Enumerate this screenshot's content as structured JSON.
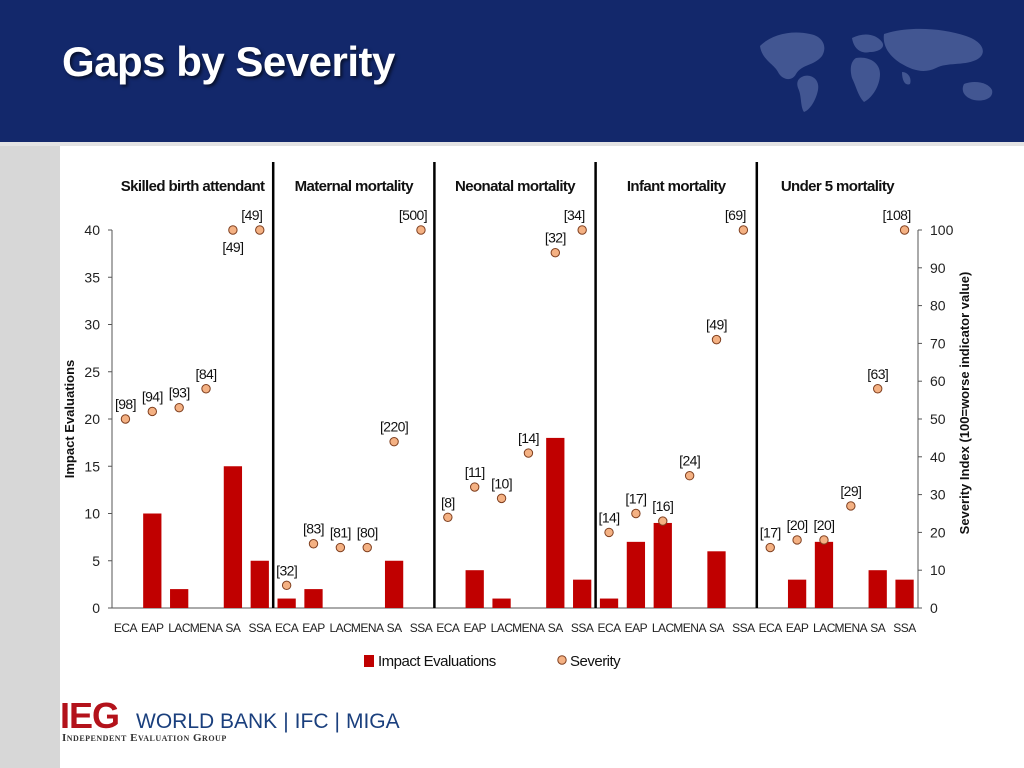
{
  "slide": {
    "title": "Gaps by Severity"
  },
  "footer": {
    "logo": "IEG",
    "org_1": "WORLD BANK",
    "org_2": "IFC",
    "org_3": "MIGA",
    "separator": "|",
    "subtitle": "Independent Evaluation Group"
  },
  "colors": {
    "header_bg": "#13286b",
    "bar": "#c00000",
    "point_fill": "#f4b183",
    "point_stroke": "#7f3f1f",
    "divider": "#000000"
  },
  "chart_data": {
    "type": "bar",
    "secondary_type": "scatter",
    "panels": [
      {
        "title": "Skilled birth attendant",
        "categories": [
          "ECA",
          "EAP",
          "LAC",
          "MENA",
          "SA",
          "SSA"
        ],
        "impact_evaluations": [
          0,
          10,
          2,
          0,
          15,
          5
        ],
        "severity": [
          50,
          52,
          53,
          58,
          100,
          100
        ],
        "severity_labels": [
          "[98]",
          "[94]",
          "[93]",
          "[84]",
          "[49]",
          "[49]"
        ]
      },
      {
        "title": "Maternal mortality",
        "categories": [
          "ECA",
          "EAP",
          "LAC",
          "MENA",
          "SA",
          "SSA"
        ],
        "impact_evaluations": [
          1,
          2,
          0,
          0,
          5,
          0
        ],
        "severity": [
          6,
          17,
          16,
          16,
          44,
          100
        ],
        "severity_labels": [
          "[32]",
          "[83]",
          "[81]",
          "[80]",
          "[220]",
          "[500]"
        ]
      },
      {
        "title": "Neonatal mortality",
        "categories": [
          "ECA",
          "EAP",
          "LAC",
          "MENA",
          "SA",
          "SSA"
        ],
        "impact_evaluations": [
          0,
          4,
          1,
          0,
          18,
          3
        ],
        "severity": [
          24,
          32,
          29,
          41,
          94,
          100
        ],
        "severity_labels": [
          "[8]",
          "[11]",
          "[10]",
          "[14]",
          "[32]",
          "[34]"
        ]
      },
      {
        "title": "Infant mortality",
        "categories": [
          "ECA",
          "EAP",
          "LAC",
          "MENA",
          "SA",
          "SSA"
        ],
        "impact_evaluations": [
          1,
          7,
          9,
          0,
          6,
          0
        ],
        "severity": [
          20,
          25,
          23,
          35,
          71,
          100
        ],
        "severity_labels": [
          "[14]",
          "[17]",
          "[16]",
          "[24]",
          "[49]",
          "[69]"
        ]
      },
      {
        "title": "Under 5 mortality",
        "categories": [
          "ECA",
          "EAP",
          "LAC",
          "MENA",
          "SA",
          "SSA"
        ],
        "impact_evaluations": [
          0,
          3,
          7,
          0,
          4,
          3
        ],
        "severity": [
          16,
          18,
          18,
          27,
          58,
          100
        ],
        "severity_labels": [
          "[17]",
          "[20]",
          "[20]",
          "[29]",
          "[63]",
          "[108]"
        ]
      }
    ],
    "y_left": {
      "label": "Impact Evaluations",
      "ylim": [
        0,
        40
      ],
      "ticks": [
        "0",
        "5",
        "10",
        "15",
        "20",
        "25",
        "30",
        "35",
        "40"
      ]
    },
    "y_right": {
      "label": "Severity Index (100=worse indicator value)",
      "ylim": [
        0,
        100
      ],
      "ticks": [
        "0",
        "10",
        "20",
        "30",
        "40",
        "50",
        "60",
        "70",
        "80",
        "90",
        "100"
      ]
    },
    "legend": {
      "position": "bottom",
      "items": [
        {
          "name": "Impact Evaluations",
          "shape": "bar"
        },
        {
          "name": "Severity",
          "shape": "circle"
        }
      ]
    },
    "grid": false
  }
}
